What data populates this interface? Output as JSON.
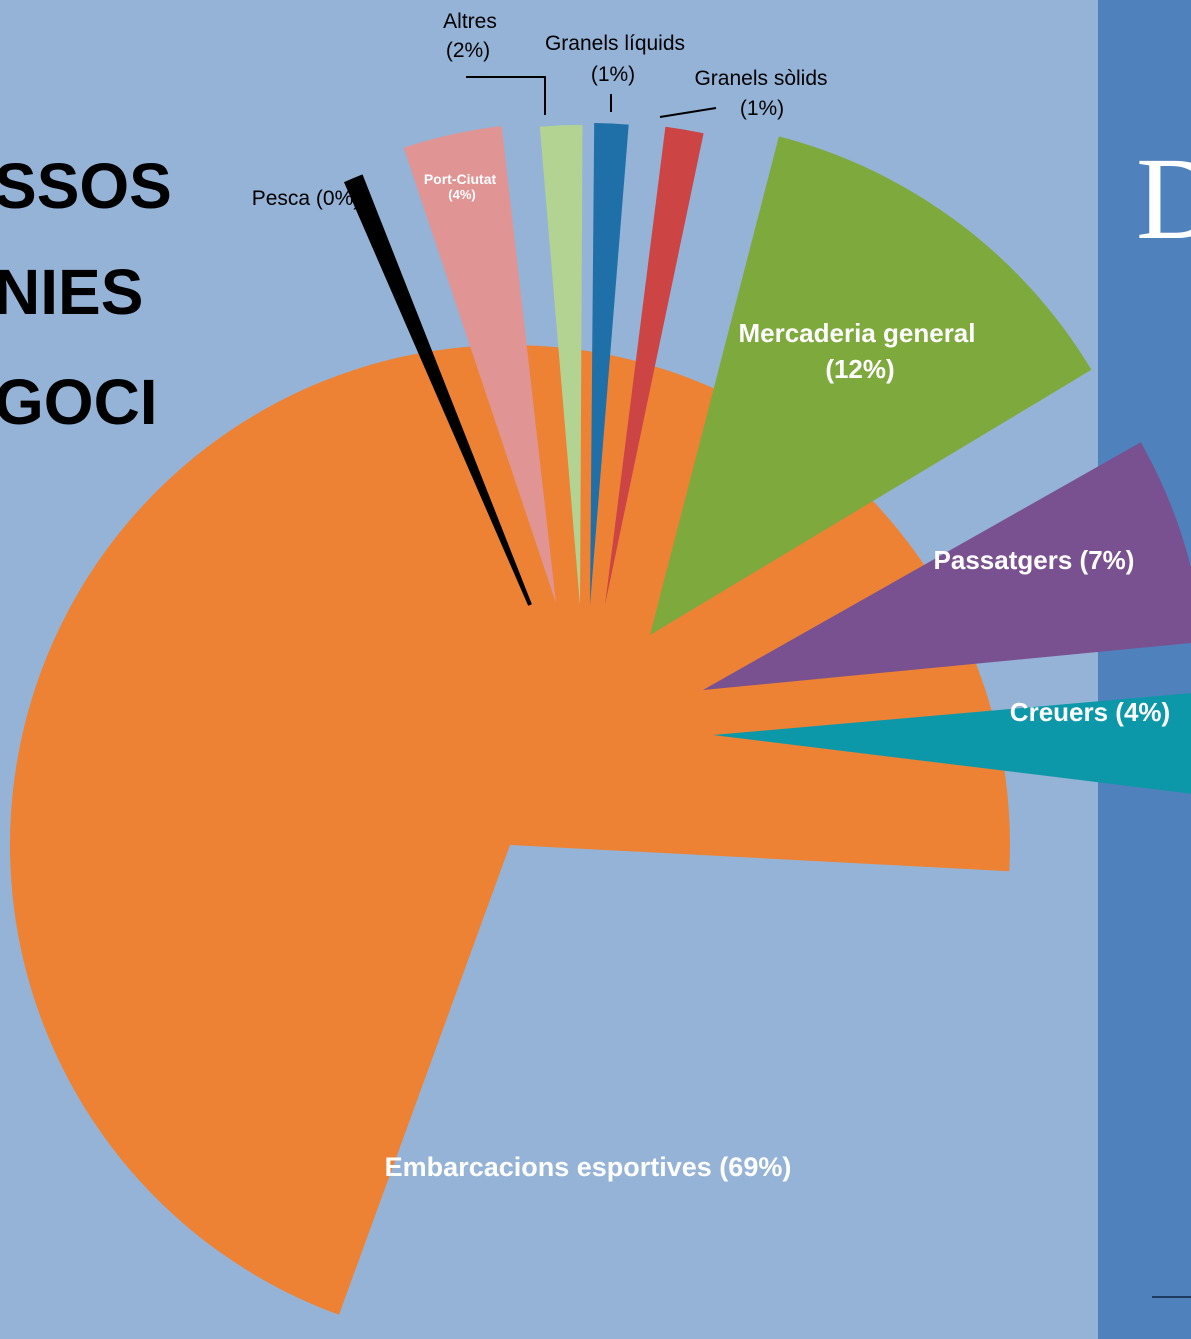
{
  "heading_lines": [
    "SSOS",
    "NIES",
    "GOCI"
  ],
  "side_panel": {
    "letter": "D",
    "color": "#4f81bd"
  },
  "background_color": "#95b3d7",
  "chart_data": {
    "type": "pie",
    "style": "exploded",
    "title": "",
    "slices": [
      {
        "key": "embarcacions",
        "label": "Embarcacions esportives (69%)",
        "value": 69,
        "color": "#ed8234"
      },
      {
        "key": "pesca",
        "label": "Pesca (0%)",
        "value": 0,
        "color": "#000000"
      },
      {
        "key": "portciutat",
        "label_lines": [
          "Port-Ciutat",
          "(4%)"
        ],
        "value": 4,
        "color": "#e09494"
      },
      {
        "key": "altres",
        "label_lines": [
          "Altres",
          "(2%)"
        ],
        "value": 2,
        "color": "#b3d392"
      },
      {
        "key": "liquids",
        "label_lines": [
          "Granels líquids",
          "(1%)"
        ],
        "value": 1,
        "color": "#1f6fa8"
      },
      {
        "key": "solids",
        "label_lines": [
          "Granels sòlids",
          "(1%)"
        ],
        "value": 1,
        "color": "#cc4444"
      },
      {
        "key": "mercaderia",
        "label_lines": [
          "Mercaderia general",
          "(12%)"
        ],
        "value": 12,
        "color": "#7ea93d"
      },
      {
        "key": "passatgers",
        "label": "Passatgers (7%)",
        "value": 7,
        "color": "#7a5190"
      },
      {
        "key": "creuers",
        "label": "Creuers (4%)",
        "value": 4,
        "color": "#0c98a8"
      }
    ]
  }
}
